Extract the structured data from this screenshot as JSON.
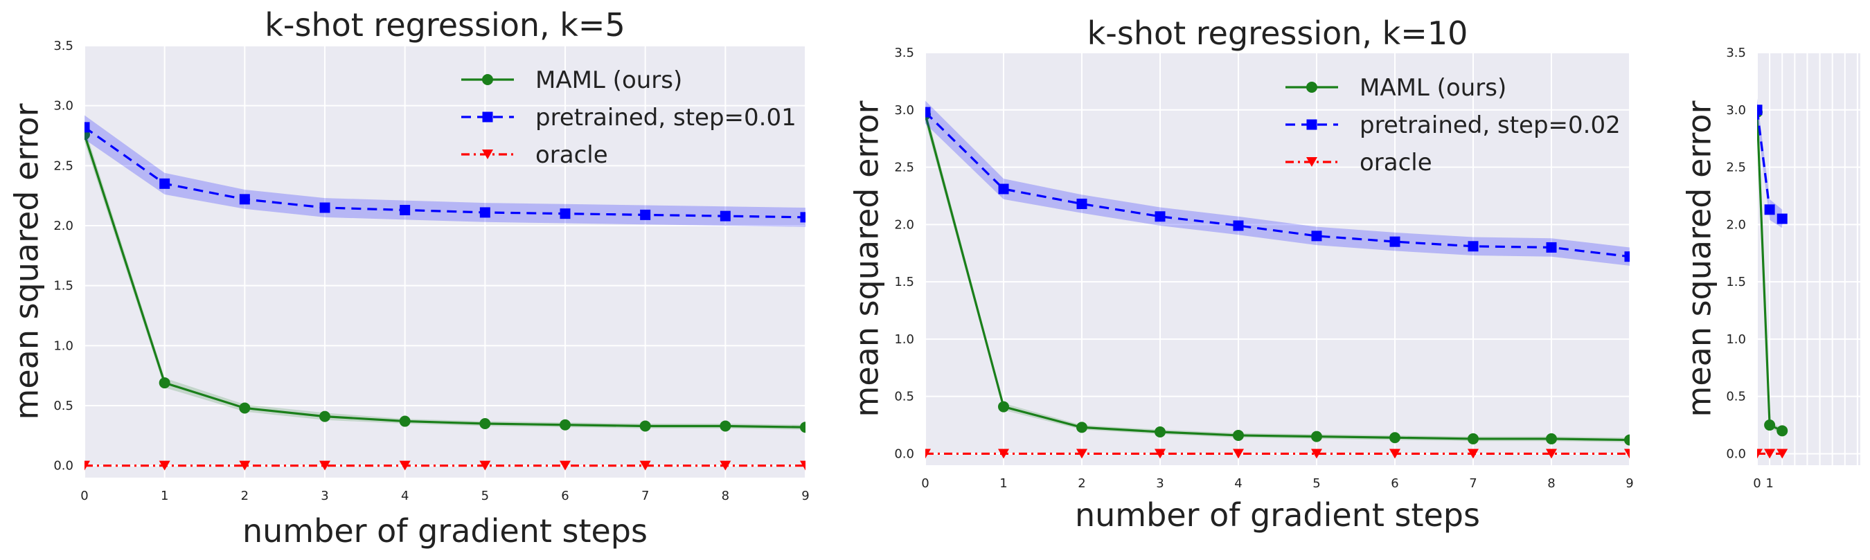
{
  "chart_data": [
    {
      "type": "line",
      "title": "k-shot regression, k=5",
      "xlabel": "number of gradient steps",
      "ylabel": "mean squared error",
      "xlim": [
        0,
        9
      ],
      "ylim": [
        -0.1,
        3.5
      ],
      "xticks": [
        0,
        1,
        2,
        3,
        4,
        5,
        6,
        7,
        8,
        9
      ],
      "yticks": [
        0.0,
        0.5,
        1.0,
        1.5,
        2.0,
        2.5,
        3.0,
        3.5
      ],
      "ytick_labels": [
        "0.0",
        "0.5",
        "1.0",
        "1.5",
        "2.0",
        "2.5",
        "3.0",
        "3.5"
      ],
      "grid": true,
      "legend_position": "top-right",
      "x": [
        0,
        1,
        2,
        3,
        4,
        5,
        6,
        7,
        8,
        9
      ],
      "series": [
        {
          "name": "MAML (ours)",
          "color": "#1a7f1a",
          "linestyle": "solid",
          "marker": "circle",
          "values": [
            2.76,
            0.69,
            0.48,
            0.41,
            0.37,
            0.35,
            0.34,
            0.33,
            0.33,
            0.32
          ],
          "band": [
            0.06,
            0.04,
            0.03,
            0.03,
            0.02,
            0.02,
            0.02,
            0.02,
            0.02,
            0.02
          ]
        },
        {
          "name": "pretrained, step=0.01",
          "color": "#0000ff",
          "linestyle": "dashed",
          "marker": "square",
          "values": [
            2.82,
            2.35,
            2.22,
            2.15,
            2.13,
            2.11,
            2.1,
            2.09,
            2.08,
            2.07
          ],
          "band": [
            0.1,
            0.09,
            0.08,
            0.08,
            0.08,
            0.08,
            0.08,
            0.08,
            0.08,
            0.08
          ]
        },
        {
          "name": "oracle",
          "color": "#ff0000",
          "linestyle": "dashdot",
          "marker": "triangle-down",
          "values": [
            0,
            0,
            0,
            0,
            0,
            0,
            0,
            0,
            0,
            0
          ],
          "band": [
            0,
            0,
            0,
            0,
            0,
            0,
            0,
            0,
            0,
            0
          ]
        }
      ]
    },
    {
      "type": "line",
      "title": "k-shot regression, k=10",
      "xlabel": "number of gradient steps",
      "ylabel": "mean squared error",
      "xlim": [
        0,
        9
      ],
      "ylim": [
        -0.1,
        3.5
      ],
      "xticks": [
        0,
        1,
        2,
        3,
        4,
        5,
        6,
        7,
        8,
        9
      ],
      "yticks": [
        0.0,
        0.5,
        1.0,
        1.5,
        2.0,
        2.5,
        3.0,
        3.5
      ],
      "ytick_labels": [
        "0.0",
        "0.5",
        "1.0",
        "1.5",
        "2.0",
        "2.5",
        "3.0",
        "3.5"
      ],
      "grid": true,
      "legend_position": "top-right",
      "x": [
        0,
        1,
        2,
        3,
        4,
        5,
        6,
        7,
        8,
        9
      ],
      "series": [
        {
          "name": "MAML (ours)",
          "color": "#1a7f1a",
          "linestyle": "solid",
          "marker": "circle",
          "values": [
            2.96,
            0.41,
            0.23,
            0.19,
            0.16,
            0.15,
            0.14,
            0.13,
            0.13,
            0.12
          ],
          "band": [
            0.06,
            0.03,
            0.02,
            0.02,
            0.02,
            0.02,
            0.02,
            0.02,
            0.02,
            0.02
          ]
        },
        {
          "name": "pretrained, step=0.02",
          "color": "#0000ff",
          "linestyle": "dashed",
          "marker": "square",
          "values": [
            2.98,
            2.31,
            2.18,
            2.07,
            1.99,
            1.9,
            1.85,
            1.81,
            1.8,
            1.72
          ],
          "band": [
            0.1,
            0.09,
            0.08,
            0.08,
            0.08,
            0.08,
            0.08,
            0.08,
            0.08,
            0.08
          ]
        },
        {
          "name": "oracle",
          "color": "#ff0000",
          "linestyle": "dashdot",
          "marker": "triangle-down",
          "values": [
            0,
            0,
            0,
            0,
            0,
            0,
            0,
            0,
            0,
            0
          ],
          "band": [
            0,
            0,
            0,
            0,
            0,
            0,
            0,
            0,
            0,
            0
          ]
        }
      ]
    },
    {
      "type": "line",
      "title": "",
      "xlabel": "",
      "ylabel": "mean squared error",
      "xlim": [
        0,
        9
      ],
      "ylim": [
        -0.1,
        3.5
      ],
      "xticks": [
        0,
        1
      ],
      "yticks": [
        0.0,
        0.5,
        1.0,
        1.5,
        2.0,
        2.5,
        3.0,
        3.5
      ],
      "ytick_labels": [
        "0.0",
        "0.5",
        "1.0",
        "1.5",
        "2.0",
        "2.5",
        "3.0",
        "3.5"
      ],
      "grid": true,
      "legend_position": "",
      "x": [
        0,
        1,
        2
      ],
      "series": [
        {
          "name": "",
          "color": "#1a7f1a",
          "linestyle": "solid",
          "marker": "circle",
          "values": [
            2.98,
            0.25,
            0.2
          ],
          "band": [
            0.06,
            0.03,
            0.02
          ]
        },
        {
          "name": "",
          "color": "#0000ff",
          "linestyle": "dashed",
          "marker": "square",
          "values": [
            3.0,
            2.13,
            2.05
          ],
          "band": [
            0.1,
            0.09,
            0.08
          ]
        },
        {
          "name": "",
          "color": "#ff0000",
          "linestyle": "dashdot",
          "marker": "triangle-down",
          "values": [
            0,
            0,
            0
          ],
          "band": [
            0,
            0,
            0
          ]
        }
      ]
    }
  ]
}
